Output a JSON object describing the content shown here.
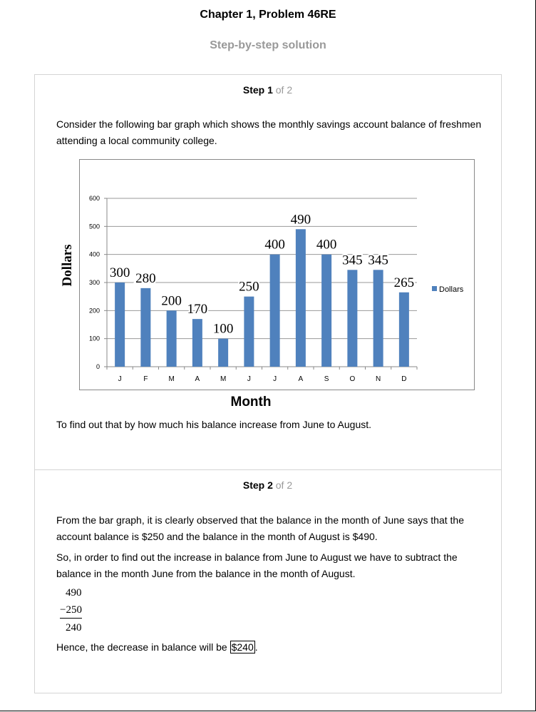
{
  "header": {
    "title": "Chapter 1, Problem 46RE",
    "subtitle": "Step-by-step solution"
  },
  "step1": {
    "label": "Step 1",
    "of": "of 2",
    "intro": "Consider the following bar graph which shows the monthly savings account balance of freshmen attending a local community college.",
    "question": "To find out that by how much his balance increase from June to August."
  },
  "step2": {
    "label": "Step 2",
    "of": "of 2",
    "para1": "From the bar graph, it is clearly observed that the balance in the month of June says that the account balance is $250 and the balance in the month of August is $490.",
    "para2": "So, in order to find out the increase in balance from June to August we have to subtract the balance in the month June from the balance in the month of August.",
    "calc_line1": "490",
    "calc_line2": "−250",
    "calc_line3": "240",
    "conclusion_prefix": "Hence, the decrease in balance will be",
    "conclusion_answer": "$240",
    "conclusion_suffix": "."
  },
  "chart_data": {
    "type": "bar",
    "categories": [
      "J",
      "F",
      "M",
      "A",
      "M",
      "J",
      "J",
      "A",
      "S",
      "O",
      "N",
      "D"
    ],
    "series": [
      {
        "name": "Dollars",
        "values": [
          300,
          280,
          200,
          170,
          100,
          250,
          400,
          490,
          400,
          345,
          345,
          265
        ]
      }
    ],
    "data_labels": [
      "300",
      "280",
      "200",
      "170",
      "100",
      "250",
      "400",
      "490",
      "400",
      "345",
      "345",
      "265"
    ],
    "yticks": [
      "0",
      "100",
      "200",
      "300",
      "400",
      "500",
      "600"
    ],
    "ylim": [
      0,
      600
    ],
    "xlabel": "Month",
    "ylabel": "Dollars",
    "legend_position": "right",
    "grid": true,
    "bar_color": "#4f81bd"
  }
}
